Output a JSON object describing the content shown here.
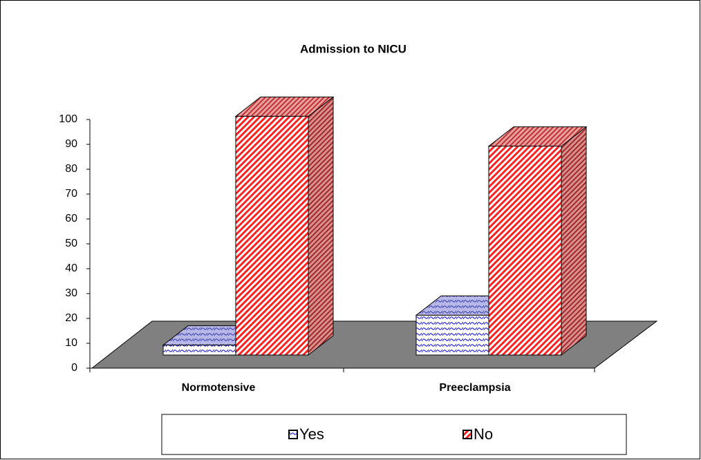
{
  "chart_data": {
    "type": "bar3d",
    "title": "Admission to NICU",
    "categories": [
      "Normotensive",
      "Preeclampsia"
    ],
    "series": [
      {
        "name": "Yes",
        "color": "#0000ff",
        "values": [
          4,
          16
        ]
      },
      {
        "name": "No",
        "color": "#ff0000",
        "values": [
          96,
          84
        ]
      }
    ],
    "ylim": [
      0,
      100
    ],
    "yticks": [
      0,
      10,
      20,
      30,
      40,
      50,
      60,
      70,
      80,
      90,
      100
    ]
  }
}
